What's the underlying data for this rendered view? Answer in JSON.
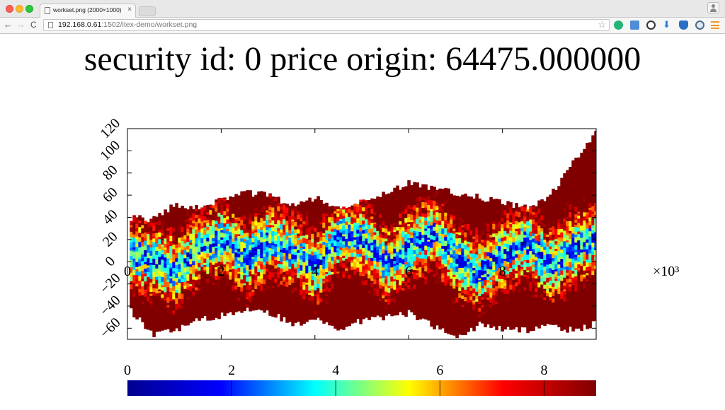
{
  "browser": {
    "tab_title": "workset.png (2000×1000)",
    "tab_close": "×",
    "address": {
      "host": "192.168.0.61",
      "path": ":1502/itex-demo/workset.png"
    },
    "nav": {
      "back": "←",
      "forward": "→",
      "reload": "C"
    },
    "bookmark": "☆",
    "download_icon": "⬇"
  },
  "chart_data": {
    "type": "heatmap",
    "title": "security id: 0 price origin: 64475.000000",
    "xlabel": "",
    "ylabel": "",
    "x_multiplier": "×10³",
    "xlim": [
      0,
      10
    ],
    "ylim": [
      -70,
      120
    ],
    "x_ticks": [
      "0",
      "2",
      "4",
      "6",
      "8"
    ],
    "y_ticks": [
      "120",
      "100",
      "80",
      "60",
      "40",
      "20",
      "0",
      "−20",
      "−40",
      "−60"
    ],
    "colorbar": {
      "range": [
        0,
        9
      ],
      "ticks": [
        "0",
        "2",
        "4",
        "6",
        "8"
      ],
      "colormap": [
        "#00008f",
        "#0000ff",
        "#00ffff",
        "#ffff00",
        "#ff0000",
        "#800000"
      ]
    },
    "series": [
      {
        "role": "upper_envelope",
        "x": [
          0,
          0.5,
          1,
          1.5,
          2,
          2.5,
          3,
          3.5,
          4,
          4.5,
          5,
          5.5,
          6,
          6.5,
          7,
          7.5,
          8,
          8.5,
          9,
          9.5,
          10
        ],
        "y": [
          40,
          38,
          52,
          48,
          56,
          62,
          60,
          50,
          58,
          47,
          56,
          62,
          72,
          66,
          62,
          58,
          53,
          48,
          60,
          90,
          120
        ]
      },
      {
        "role": "lower_envelope",
        "x": [
          0,
          0.5,
          1,
          1.5,
          2,
          2.5,
          3,
          3.5,
          4,
          4.5,
          5,
          5.5,
          6,
          6.5,
          7,
          7.5,
          8,
          8.5,
          9,
          9.5,
          10
        ],
        "y": [
          -42,
          -66,
          -62,
          -52,
          -48,
          -44,
          -46,
          -56,
          -52,
          -62,
          -52,
          -50,
          -46,
          -58,
          -70,
          -56,
          -60,
          -62,
          -58,
          -62,
          -55
        ]
      },
      {
        "role": "mid_band",
        "x": [
          0,
          0.5,
          1,
          1.5,
          2,
          2.5,
          3,
          3.5,
          4,
          4.5,
          5,
          5.5,
          6,
          6.5,
          7,
          7.5,
          8,
          8.5,
          9,
          9.5,
          10
        ],
        "y": [
          5,
          0,
          -10,
          10,
          20,
          0,
          18,
          8,
          -8,
          22,
          18,
          -5,
          12,
          25,
          0,
          -12,
          6,
          15,
          -5,
          10,
          20
        ]
      }
    ]
  }
}
